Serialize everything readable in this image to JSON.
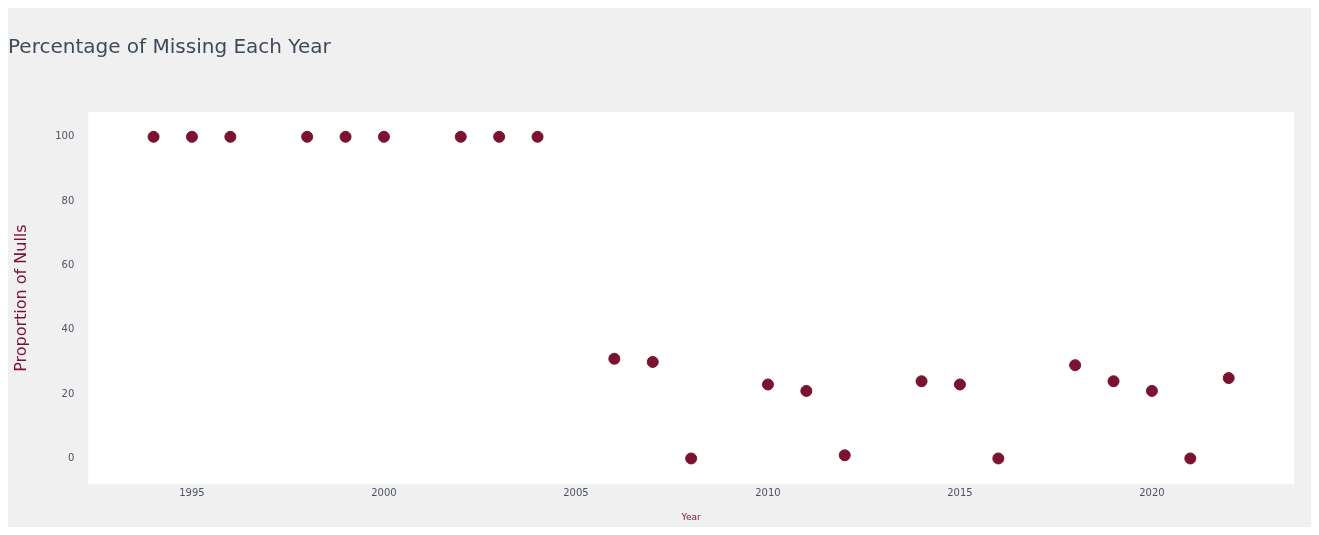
{
  "chart_data": {
    "type": "scatter",
    "title": "Percentage of Missing Each Year",
    "xlabel": "Year",
    "ylabel": "Proportion of Nulls",
    "x": [
      1994,
      1995,
      1996,
      1998,
      1999,
      2000,
      2002,
      2003,
      2004,
      2006,
      2007,
      2008,
      2010,
      2011,
      2012,
      2014,
      2015,
      2016,
      2018,
      2019,
      2020,
      2021,
      2022
    ],
    "series": [
      {
        "color": "#7b1230",
        "values": [
          100,
          100,
          100,
          100,
          100,
          100,
          100,
          100,
          100,
          31,
          30,
          0,
          23,
          21,
          1,
          24,
          23,
          0,
          29,
          24,
          21,
          0,
          25
        ]
      }
    ],
    "xlim": [
      1992.3,
      2023.7
    ],
    "xticks": [
      1995,
      2000,
      2005,
      2010,
      2015,
      2020
    ],
    "ylim": [
      -8,
      107.7
    ],
    "yticks": [
      0,
      20,
      40,
      60,
      80,
      100
    ],
    "grid": false,
    "legend": false,
    "marker": "circle"
  }
}
